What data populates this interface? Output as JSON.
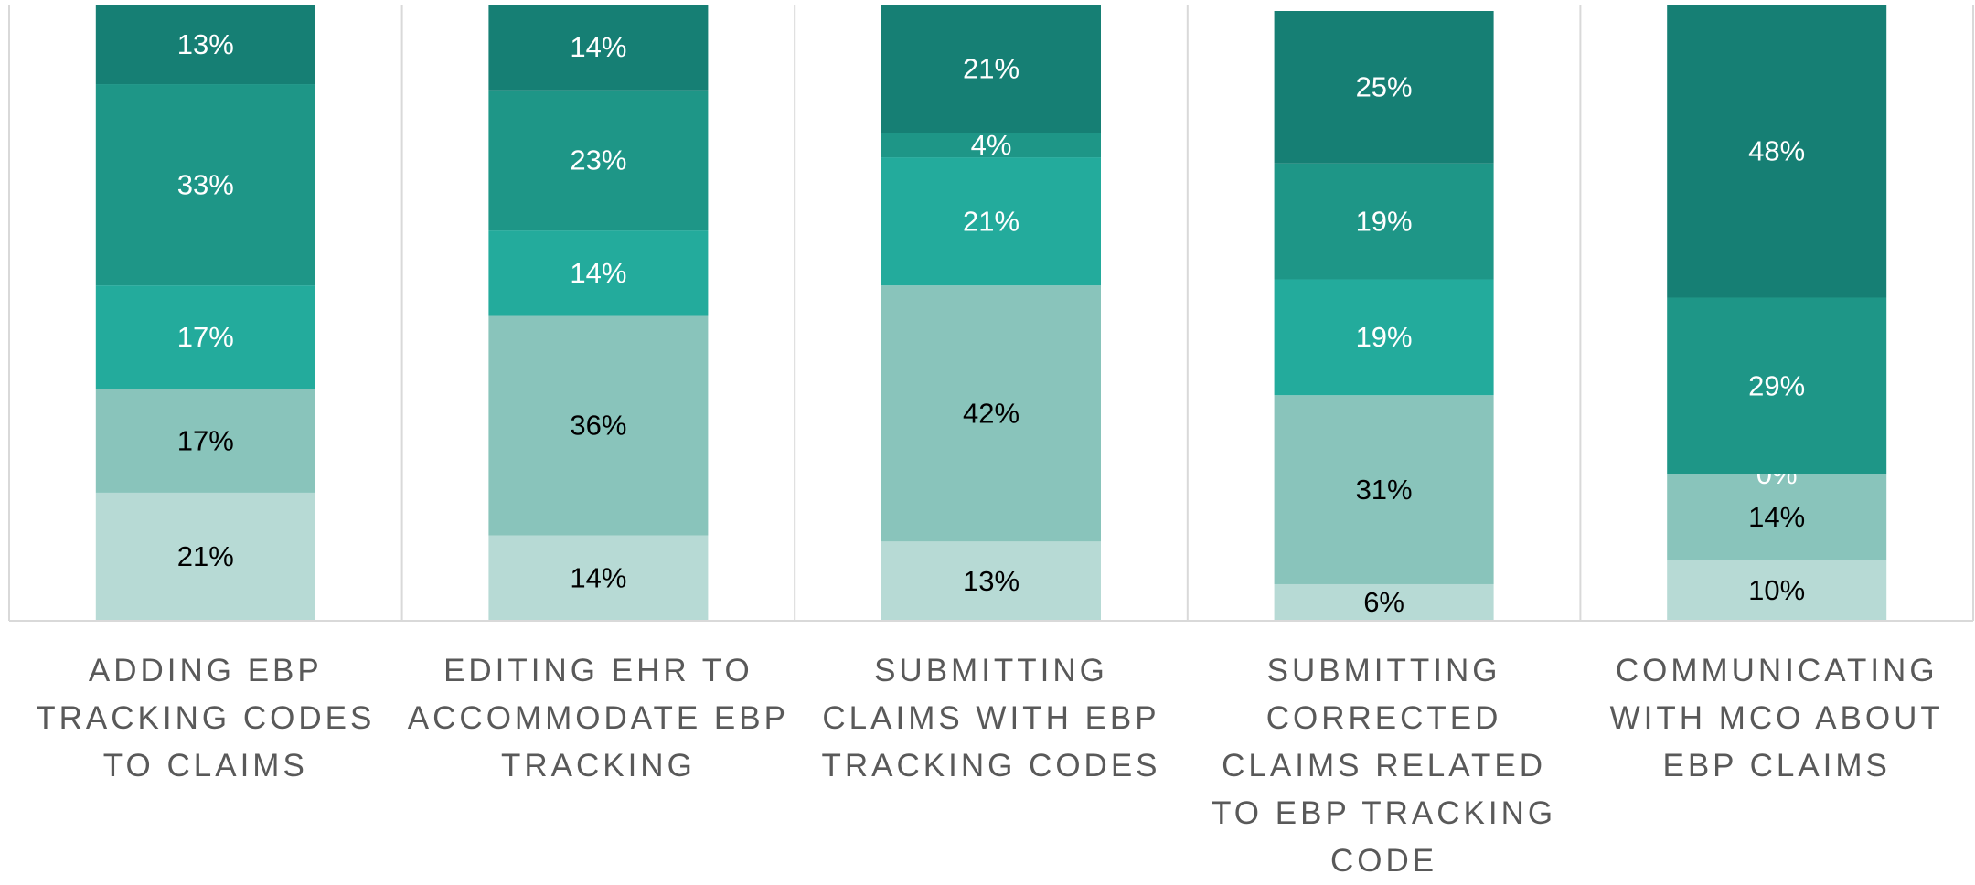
{
  "chart_data": {
    "type": "stacked_bar_100",
    "categories": [
      "ADDING EBP TRACKING CODES TO CLAIMS",
      "EDITING EHR TO ACCOMMODATE EBP TRACKING",
      "SUBMITTING CLAIMS WITH EBP TRACKING CODES",
      "SUBMITTING CORRECTED CLAIMS RELATED TO EBP TRACKING CODE",
      "COMMUNICATING WITH MCO ABOUT EBP CLAIMS"
    ],
    "series": [
      {
        "color": "#b7dad5",
        "label_color": "#000000",
        "values": [
          21,
          14,
          13,
          6,
          10
        ],
        "value_labels": [
          "21%",
          "14%",
          "13%",
          "6%",
          "10%"
        ]
      },
      {
        "color": "#89c4bb",
        "label_color": "#000000",
        "values": [
          17,
          36,
          42,
          31,
          14
        ],
        "value_labels": [
          "17%",
          "36%",
          "42%",
          "31%",
          "14%"
        ]
      },
      {
        "color": "#23ab9c",
        "label_color": "#ffffff",
        "values": [
          17,
          14,
          21,
          19,
          0
        ],
        "value_labels": [
          "17%",
          "14%",
          "21%",
          "19%",
          "0%"
        ]
      },
      {
        "color": "#1e9687",
        "label_color": "#ffffff",
        "values": [
          33,
          23,
          4,
          19,
          29
        ],
        "value_labels": [
          "33%",
          "23%",
          "4%",
          "19%",
          "29%"
        ]
      },
      {
        "color": "#167f74",
        "label_color": "#ffffff",
        "values": [
          13,
          14,
          21,
          25,
          48
        ],
        "value_labels": [
          "13%",
          "14%",
          "21%",
          "25%",
          "48%"
        ]
      }
    ],
    "ylim": [
      0,
      100
    ]
  }
}
